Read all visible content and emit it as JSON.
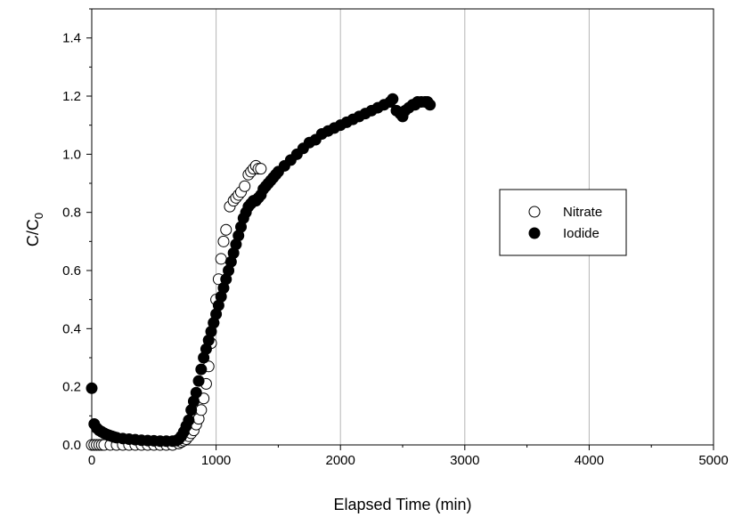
{
  "chart_data": {
    "type": "scatter",
    "xlabel": "Elapsed Time (min)",
    "ylabel": "C/C",
    "ylabel_subscript": "0",
    "xlim": [
      0,
      5000
    ],
    "ylim": [
      0,
      1.5
    ],
    "x_ticks": [
      "0",
      "1000",
      "2000",
      "3000",
      "4000",
      "5000"
    ],
    "y_ticks": [
      "0.0",
      "0.2",
      "0.4",
      "0.6",
      "0.8",
      "1.0",
      "1.2",
      "1.4"
    ],
    "grid": "vertical",
    "legend_position": "right",
    "series": [
      {
        "name": "Nitrate",
        "marker": "open-circle",
        "color": "#000000",
        "points": [
          [
            0,
            0.0
          ],
          [
            20,
            0.0
          ],
          [
            40,
            0.0
          ],
          [
            60,
            0.0
          ],
          [
            80,
            0.0
          ],
          [
            100,
            0.0
          ],
          [
            150,
            0.0
          ],
          [
            200,
            0.0
          ],
          [
            250,
            0.0
          ],
          [
            300,
            0.0
          ],
          [
            350,
            0.0
          ],
          [
            400,
            0.0
          ],
          [
            450,
            0.0
          ],
          [
            500,
            0.0
          ],
          [
            550,
            0.0
          ],
          [
            600,
            0.0
          ],
          [
            650,
            0.0
          ],
          [
            700,
            0.005
          ],
          [
            720,
            0.01
          ],
          [
            740,
            0.015
          ],
          [
            760,
            0.02
          ],
          [
            780,
            0.03
          ],
          [
            800,
            0.04
          ],
          [
            820,
            0.05
          ],
          [
            840,
            0.07
          ],
          [
            860,
            0.09
          ],
          [
            880,
            0.12
          ],
          [
            900,
            0.16
          ],
          [
            920,
            0.21
          ],
          [
            940,
            0.27
          ],
          [
            960,
            0.35
          ],
          [
            980,
            0.42
          ],
          [
            1000,
            0.5
          ],
          [
            1020,
            0.57
          ],
          [
            1040,
            0.64
          ],
          [
            1060,
            0.7
          ],
          [
            1080,
            0.74
          ],
          [
            1110,
            0.82
          ],
          [
            1140,
            0.84
          ],
          [
            1160,
            0.85
          ],
          [
            1180,
            0.86
          ],
          [
            1200,
            0.87
          ],
          [
            1230,
            0.89
          ],
          [
            1260,
            0.93
          ],
          [
            1280,
            0.94
          ],
          [
            1300,
            0.95
          ],
          [
            1320,
            0.96
          ],
          [
            1340,
            0.95
          ],
          [
            1360,
            0.95
          ]
        ]
      },
      {
        "name": "Iodide",
        "marker": "filled-circle",
        "color": "#000000",
        "points": [
          [
            0,
            0.195
          ],
          [
            20,
            0.072
          ],
          [
            40,
            0.058
          ],
          [
            60,
            0.05
          ],
          [
            80,
            0.045
          ],
          [
            100,
            0.04
          ],
          [
            120,
            0.036
          ],
          [
            140,
            0.033
          ],
          [
            160,
            0.03
          ],
          [
            180,
            0.027
          ],
          [
            200,
            0.025
          ],
          [
            250,
            0.022
          ],
          [
            300,
            0.02
          ],
          [
            350,
            0.018
          ],
          [
            400,
            0.016
          ],
          [
            450,
            0.015
          ],
          [
            500,
            0.014
          ],
          [
            550,
            0.013
          ],
          [
            600,
            0.013
          ],
          [
            650,
            0.013
          ],
          [
            680,
            0.015
          ],
          [
            700,
            0.02
          ],
          [
            720,
            0.03
          ],
          [
            740,
            0.045
          ],
          [
            760,
            0.065
          ],
          [
            780,
            0.085
          ],
          [
            800,
            0.12
          ],
          [
            820,
            0.15
          ],
          [
            840,
            0.18
          ],
          [
            860,
            0.22
          ],
          [
            880,
            0.26
          ],
          [
            900,
            0.3
          ],
          [
            920,
            0.33
          ],
          [
            940,
            0.36
          ],
          [
            960,
            0.39
          ],
          [
            980,
            0.42
          ],
          [
            1000,
            0.45
          ],
          [
            1020,
            0.48
          ],
          [
            1040,
            0.51
          ],
          [
            1060,
            0.54
          ],
          [
            1080,
            0.57
          ],
          [
            1100,
            0.6
          ],
          [
            1120,
            0.63
          ],
          [
            1140,
            0.66
          ],
          [
            1160,
            0.69
          ],
          [
            1180,
            0.72
          ],
          [
            1200,
            0.75
          ],
          [
            1220,
            0.78
          ],
          [
            1240,
            0.8
          ],
          [
            1260,
            0.82
          ],
          [
            1280,
            0.83
          ],
          [
            1300,
            0.84
          ],
          [
            1320,
            0.84
          ],
          [
            1340,
            0.85
          ],
          [
            1360,
            0.86
          ],
          [
            1380,
            0.88
          ],
          [
            1400,
            0.89
          ],
          [
            1420,
            0.9
          ],
          [
            1440,
            0.91
          ],
          [
            1460,
            0.92
          ],
          [
            1480,
            0.93
          ],
          [
            1500,
            0.94
          ],
          [
            1550,
            0.96
          ],
          [
            1600,
            0.98
          ],
          [
            1650,
            1.0
          ],
          [
            1700,
            1.02
          ],
          [
            1750,
            1.04
          ],
          [
            1800,
            1.05
          ],
          [
            1850,
            1.07
          ],
          [
            1900,
            1.08
          ],
          [
            1950,
            1.09
          ],
          [
            2000,
            1.1
          ],
          [
            2050,
            1.11
          ],
          [
            2100,
            1.12
          ],
          [
            2150,
            1.13
          ],
          [
            2200,
            1.14
          ],
          [
            2250,
            1.15
          ],
          [
            2300,
            1.16
          ],
          [
            2350,
            1.17
          ],
          [
            2400,
            1.18
          ],
          [
            2420,
            1.19
          ],
          [
            2450,
            1.15
          ],
          [
            2480,
            1.14
          ],
          [
            2500,
            1.13
          ],
          [
            2520,
            1.15
          ],
          [
            2550,
            1.16
          ],
          [
            2580,
            1.17
          ],
          [
            2600,
            1.17
          ],
          [
            2620,
            1.18
          ],
          [
            2650,
            1.18
          ],
          [
            2680,
            1.18
          ],
          [
            2700,
            1.18
          ],
          [
            2720,
            1.17
          ]
        ]
      }
    ]
  }
}
